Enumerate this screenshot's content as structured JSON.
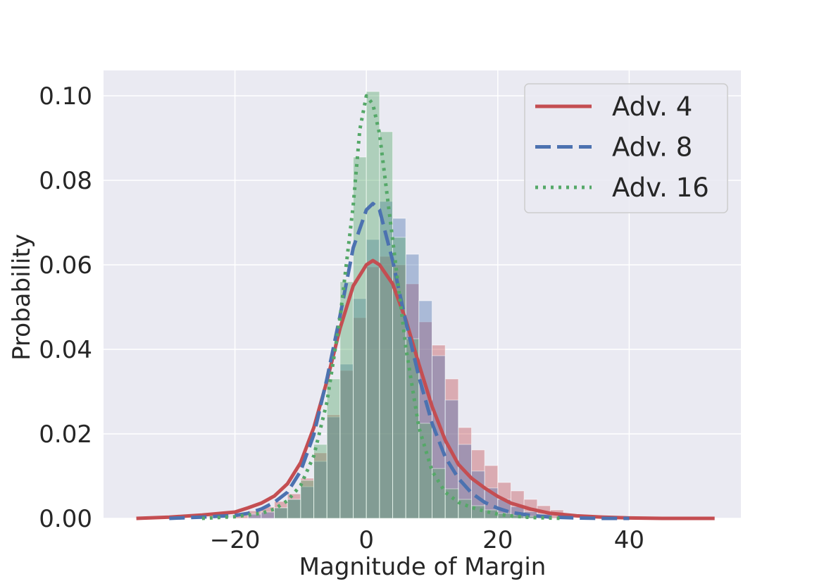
{
  "chart_data": {
    "type": "histogram_kde",
    "title": "",
    "xlabel": "Magnitude of Margin",
    "ylabel": "Probability",
    "xlim": [
      -40,
      57
    ],
    "ylim": [
      0,
      0.106
    ],
    "xticks": [
      -20,
      0,
      20,
      40
    ],
    "xtick_labels": [
      "−20",
      "0",
      "20",
      "40"
    ],
    "yticks": [
      0.0,
      0.02,
      0.04,
      0.06,
      0.08,
      0.1
    ],
    "ytick_labels": [
      "0.00",
      "0.02",
      "0.04",
      "0.06",
      "0.08",
      "0.10"
    ],
    "grid": true,
    "legend_position": "top-right",
    "colors": {
      "background": "#eaeaf2",
      "grid": "#ffffff",
      "adv4": "#c44e52",
      "adv8": "#4c72b0",
      "adv16": "#55a868"
    },
    "series": [
      {
        "name": "Adv. 4",
        "line_style": "solid",
        "kde": {
          "x": [
            -35,
            -30,
            -25,
            -20,
            -18,
            -16,
            -14,
            -12,
            -10,
            -8,
            -6,
            -4,
            -2,
            0,
            1,
            2,
            4,
            6,
            8,
            10,
            12,
            14,
            16,
            18,
            20,
            22,
            25,
            28,
            32,
            36,
            40,
            45,
            53
          ],
          "y": [
            0.0,
            0.0003,
            0.0008,
            0.0015,
            0.0025,
            0.0036,
            0.0053,
            0.0082,
            0.0132,
            0.0215,
            0.0325,
            0.045,
            0.055,
            0.06,
            0.061,
            0.06,
            0.0555,
            0.047,
            0.0365,
            0.0265,
            0.0185,
            0.0128,
            0.0095,
            0.0072,
            0.0052,
            0.0036,
            0.0022,
            0.0012,
            0.0006,
            0.0003,
            0.0001,
            0.0,
            0.0
          ]
        },
        "hist": {
          "bin_start": -20,
          "bin_width": 2,
          "values": [
            0.0013,
            0.0018,
            0.0027,
            0.004,
            0.0058,
            0.0095,
            0.0155,
            0.0245,
            0.035,
            0.0475,
            0.0595,
            0.062,
            0.06,
            0.0555,
            0.0465,
            0.041,
            0.033,
            0.0215,
            0.0162,
            0.0125,
            0.0085,
            0.0065,
            0.0045,
            0.003,
            0.002
          ]
        }
      },
      {
        "name": "Adv. 8",
        "line_style": "dashed",
        "kde": {
          "x": [
            -30,
            -25,
            -20,
            -18,
            -16,
            -14,
            -12,
            -10,
            -8,
            -6,
            -4,
            -2,
            0,
            1,
            2,
            4,
            6,
            8,
            10,
            12,
            14,
            16,
            18,
            20,
            22,
            25,
            28,
            32,
            36,
            40
          ],
          "y": [
            0.0,
            0.0003,
            0.0007,
            0.0012,
            0.0022,
            0.0038,
            0.0062,
            0.0112,
            0.0198,
            0.033,
            0.048,
            0.064,
            0.073,
            0.0745,
            0.073,
            0.061,
            0.0465,
            0.0335,
            0.0225,
            0.0145,
            0.0095,
            0.006,
            0.0038,
            0.0024,
            0.0014,
            0.0007,
            0.0003,
            0.0001,
            0.0,
            0.0
          ]
        },
        "hist": {
          "bin_start": -18,
          "bin_width": 2,
          "values": [
            0.001,
            0.0015,
            0.0025,
            0.0045,
            0.0075,
            0.0135,
            0.024,
            0.0365,
            0.052,
            0.066,
            0.075,
            0.071,
            0.0625,
            0.0515,
            0.0385,
            0.028,
            0.0175,
            0.0112,
            0.0072,
            0.0045,
            0.0028,
            0.0016,
            0.001
          ]
        }
      },
      {
        "name": "Adv. 16",
        "line_style": "dotted",
        "kde": {
          "x": [
            -25,
            -20,
            -16,
            -14,
            -12,
            -10,
            -8,
            -6,
            -4,
            -2,
            -1,
            0,
            1,
            2,
            4,
            6,
            8,
            10,
            12,
            14,
            16,
            18,
            20,
            22,
            25,
            30
          ],
          "y": [
            0.0,
            0.0004,
            0.0012,
            0.0022,
            0.0042,
            0.0078,
            0.0148,
            0.0275,
            0.0475,
            0.074,
            0.092,
            0.1,
            0.098,
            0.091,
            0.066,
            0.0405,
            0.0215,
            0.0112,
            0.0062,
            0.0038,
            0.0026,
            0.0017,
            0.001,
            0.0006,
            0.0002,
            0.0
          ]
        },
        "hist": {
          "bin_start": -14,
          "bin_width": 2,
          "values": [
            0.0025,
            0.0045,
            0.009,
            0.0175,
            0.033,
            0.056,
            0.0855,
            0.101,
            0.0915,
            0.0665,
            0.0425,
            0.0225,
            0.0118,
            0.007,
            0.0045,
            0.003,
            0.002,
            0.0012,
            0.0008,
            0.0005
          ]
        }
      }
    ]
  }
}
